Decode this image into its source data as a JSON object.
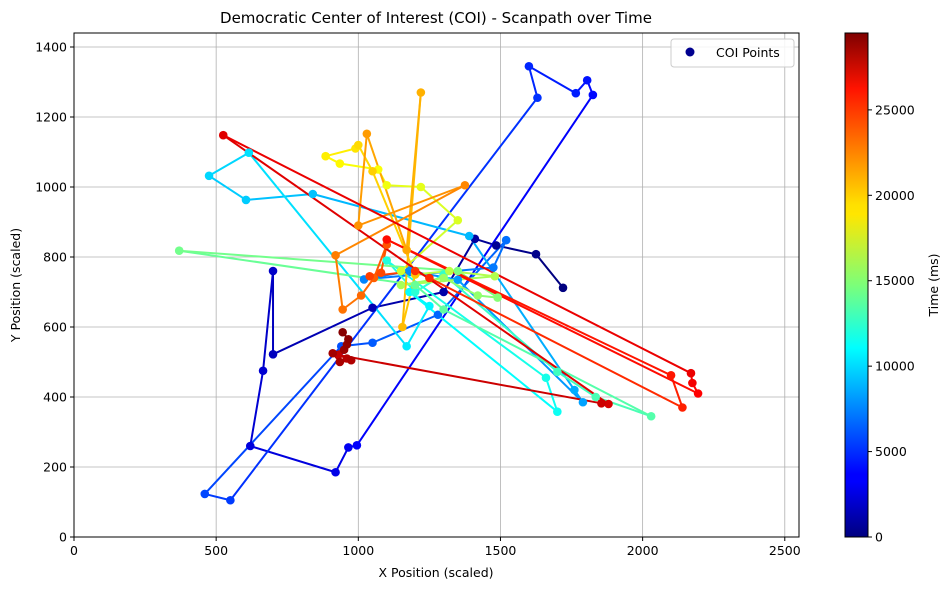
{
  "chart_data": {
    "type": "scatter",
    "title": "Democratic Center of Interest (COI) - Scanpath over Time",
    "xlabel": "X Position (scaled)",
    "ylabel": "Y Position (scaled)",
    "xlim": [
      0,
      2550
    ],
    "ylim": [
      0,
      1440
    ],
    "xticks": [
      "0",
      "500",
      "1000",
      "1500",
      "2000",
      "2500"
    ],
    "xtick_values": [
      0,
      500,
      1000,
      1500,
      2000,
      2500
    ],
    "yticks": [
      "0",
      "200",
      "400",
      "600",
      "800",
      "1000",
      "1200",
      "1400"
    ],
    "ytick_values": [
      0,
      200,
      400,
      600,
      800,
      1000,
      1200,
      1400
    ],
    "grid": true,
    "legend": {
      "label": "COI Points",
      "location": "upper-right",
      "marker_color": "#00008f"
    },
    "colorbar": {
      "label": "Time (ms)",
      "colormap": "jet",
      "range": [
        0,
        29500
      ],
      "ticks": [
        "0",
        "5000",
        "10000",
        "15000",
        "20000",
        "25000"
      ],
      "tick_values": [
        0,
        5000,
        10000,
        15000,
        20000,
        25000
      ]
    },
    "series": [
      {
        "points": [
          {
            "x": 1720,
            "y": 712,
            "t": 0
          },
          {
            "x": 1625,
            "y": 808,
            "t": 300
          },
          {
            "x": 1485,
            "y": 833,
            "t": 600
          },
          {
            "x": 1410,
            "y": 852,
            "t": 900
          },
          {
            "x": 1300,
            "y": 700,
            "t": 1200
          },
          {
            "x": 1050,
            "y": 655,
            "t": 1500
          },
          {
            "x": 700,
            "y": 522,
            "t": 1800
          },
          {
            "x": 700,
            "y": 760,
            "t": 2100
          },
          {
            "x": 665,
            "y": 475,
            "t": 2400
          },
          {
            "x": 620,
            "y": 260,
            "t": 2700
          },
          {
            "x": 920,
            "y": 185,
            "t": 3000
          },
          {
            "x": 965,
            "y": 256,
            "t": 3300
          },
          {
            "x": 995,
            "y": 262,
            "t": 3600
          },
          {
            "x": 1825,
            "y": 1263,
            "t": 3900
          },
          {
            "x": 1805,
            "y": 1305,
            "t": 4200
          },
          {
            "x": 1765,
            "y": 1268,
            "t": 4500
          },
          {
            "x": 1600,
            "y": 1345,
            "t": 4800
          },
          {
            "x": 1630,
            "y": 1255,
            "t": 5100
          },
          {
            "x": 550,
            "y": 105,
            "t": 5400
          },
          {
            "x": 460,
            "y": 123,
            "t": 5700
          },
          {
            "x": 940,
            "y": 545,
            "t": 6000
          },
          {
            "x": 1050,
            "y": 555,
            "t": 6300
          },
          {
            "x": 1280,
            "y": 635,
            "t": 6600
          },
          {
            "x": 1520,
            "y": 848,
            "t": 6900
          },
          {
            "x": 1475,
            "y": 770,
            "t": 7200
          },
          {
            "x": 1020,
            "y": 736,
            "t": 7500
          },
          {
            "x": 1180,
            "y": 760,
            "t": 7800
          },
          {
            "x": 1350,
            "y": 735,
            "t": 8100
          },
          {
            "x": 1790,
            "y": 385,
            "t": 8400
          },
          {
            "x": 1760,
            "y": 420,
            "t": 8700
          },
          {
            "x": 1390,
            "y": 860,
            "t": 9000
          },
          {
            "x": 840,
            "y": 980,
            "t": 9300
          },
          {
            "x": 605,
            "y": 963,
            "t": 9600
          },
          {
            "x": 475,
            "y": 1032,
            "t": 9900
          },
          {
            "x": 615,
            "y": 1098,
            "t": 10200
          },
          {
            "x": 1170,
            "y": 545,
            "t": 10500
          },
          {
            "x": 1250,
            "y": 660,
            "t": 10800
          },
          {
            "x": 1180,
            "y": 700,
            "t": 11100
          },
          {
            "x": 1700,
            "y": 358,
            "t": 11400
          },
          {
            "x": 1660,
            "y": 455,
            "t": 11700
          },
          {
            "x": 1100,
            "y": 790,
            "t": 12000
          },
          {
            "x": 1200,
            "y": 700,
            "t": 12300
          },
          {
            "x": 1300,
            "y": 750,
            "t": 12600
          },
          {
            "x": 1700,
            "y": 472,
            "t": 12900
          },
          {
            "x": 1835,
            "y": 400,
            "t": 13200
          },
          {
            "x": 2030,
            "y": 345,
            "t": 13500
          },
          {
            "x": 1300,
            "y": 650,
            "t": 13800
          },
          {
            "x": 1200,
            "y": 720,
            "t": 14100
          },
          {
            "x": 370,
            "y": 818,
            "t": 14400
          },
          {
            "x": 1350,
            "y": 760,
            "t": 14700
          },
          {
            "x": 1490,
            "y": 684,
            "t": 15000
          },
          {
            "x": 1420,
            "y": 690,
            "t": 15300
          },
          {
            "x": 1300,
            "y": 740,
            "t": 15600
          },
          {
            "x": 1150,
            "y": 720,
            "t": 15900
          },
          {
            "x": 1480,
            "y": 745,
            "t": 16200
          },
          {
            "x": 1320,
            "y": 760,
            "t": 16500
          },
          {
            "x": 1200,
            "y": 750,
            "t": 16800
          },
          {
            "x": 1150,
            "y": 760,
            "t": 17100
          },
          {
            "x": 1350,
            "y": 905,
            "t": 17400
          },
          {
            "x": 1220,
            "y": 1000,
            "t": 17700
          },
          {
            "x": 1100,
            "y": 1005,
            "t": 18000
          },
          {
            "x": 1070,
            "y": 1050,
            "t": 18300
          },
          {
            "x": 935,
            "y": 1067,
            "t": 18600
          },
          {
            "x": 885,
            "y": 1088,
            "t": 18900
          },
          {
            "x": 990,
            "y": 1110,
            "t": 19200
          },
          {
            "x": 1000,
            "y": 1120,
            "t": 19500
          },
          {
            "x": 1050,
            "y": 1045,
            "t": 19800
          },
          {
            "x": 1200,
            "y": 750,
            "t": 20100
          },
          {
            "x": 1155,
            "y": 600,
            "t": 20400
          },
          {
            "x": 1220,
            "y": 1270,
            "t": 20700
          },
          {
            "x": 1170,
            "y": 820,
            "t": 21000
          },
          {
            "x": 1030,
            "y": 1152,
            "t": 21300
          },
          {
            "x": 1000,
            "y": 890,
            "t": 21600
          },
          {
            "x": 1375,
            "y": 1005,
            "t": 21900
          },
          {
            "x": 920,
            "y": 805,
            "t": 22200
          },
          {
            "x": 945,
            "y": 650,
            "t": 22500
          },
          {
            "x": 1010,
            "y": 690,
            "t": 22800
          },
          {
            "x": 1055,
            "y": 740,
            "t": 23100
          },
          {
            "x": 1100,
            "y": 835,
            "t": 23400
          },
          {
            "x": 1080,
            "y": 755,
            "t": 23700
          },
          {
            "x": 1040,
            "y": 745,
            "t": 24000
          },
          {
            "x": 1200,
            "y": 760,
            "t": 24300
          },
          {
            "x": 1250,
            "y": 740,
            "t": 24600
          },
          {
            "x": 2140,
            "y": 370,
            "t": 24900
          },
          {
            "x": 2100,
            "y": 462,
            "t": 25200
          },
          {
            "x": 1100,
            "y": 850,
            "t": 25500
          },
          {
            "x": 2195,
            "y": 410,
            "t": 25800
          },
          {
            "x": 2175,
            "y": 440,
            "t": 26100
          },
          {
            "x": 2170,
            "y": 468,
            "t": 26400
          },
          {
            "x": 525,
            "y": 1148,
            "t": 26700
          },
          {
            "x": 1880,
            "y": 380,
            "t": 27000
          },
          {
            "x": 1855,
            "y": 382,
            "t": 27300
          },
          {
            "x": 930,
            "y": 520,
            "t": 27600
          },
          {
            "x": 960,
            "y": 510,
            "t": 27900
          },
          {
            "x": 975,
            "y": 505,
            "t": 28100
          },
          {
            "x": 935,
            "y": 500,
            "t": 28300
          },
          {
            "x": 910,
            "y": 525,
            "t": 28500
          },
          {
            "x": 950,
            "y": 535,
            "t": 28700
          },
          {
            "x": 960,
            "y": 550,
            "t": 28900
          },
          {
            "x": 965,
            "y": 565,
            "t": 29100
          },
          {
            "x": 945,
            "y": 585,
            "t": 29300
          }
        ]
      }
    ]
  }
}
